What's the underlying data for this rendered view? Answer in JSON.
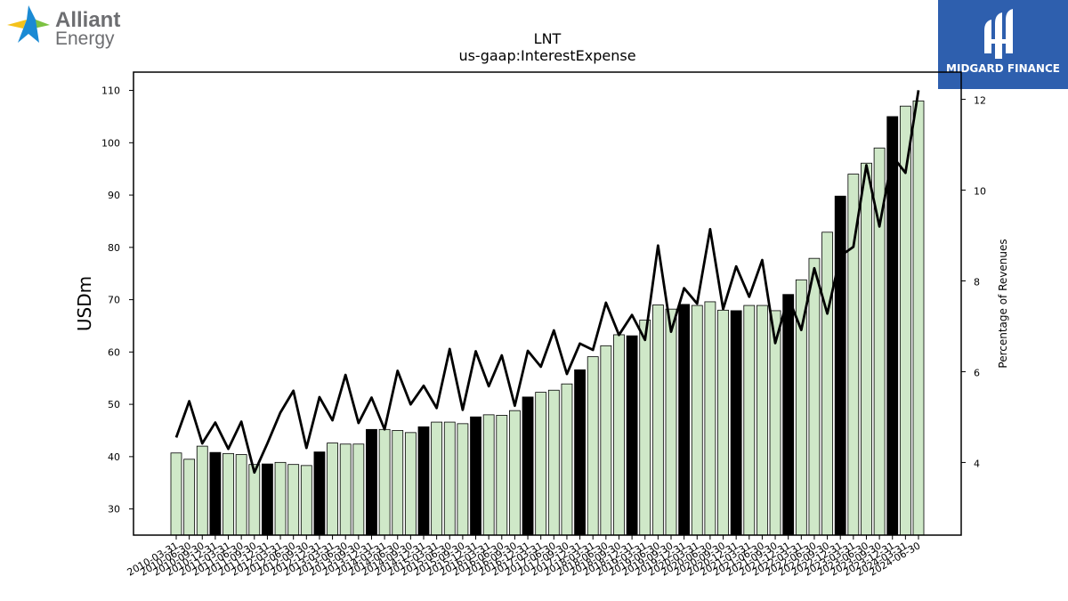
{
  "logos": {
    "left_brand_line1": "Alliant",
    "left_brand_line2": "Energy",
    "right_brand": "MIDGARD FINANCE",
    "colors": {
      "alliant_blue": "#1a8ad4",
      "alliant_yellow": "#f4c21b",
      "alliant_green": "#7cc242",
      "alliant_text": "#6d6e71",
      "midgard_bg": "#2e5fae"
    }
  },
  "chart_data": {
    "type": "bar",
    "title": "LNT",
    "subtitle": "us-gaap:InterestExpense",
    "ylabel": "USDm",
    "y2label": "Percentage of Revenues",
    "ylim": [
      25,
      113.5
    ],
    "y2lim": [
      2.4,
      12.6
    ],
    "yticks": [
      30,
      40,
      50,
      60,
      70,
      80,
      90,
      100,
      110
    ],
    "y2ticks": [
      4,
      6,
      8,
      10,
      12
    ],
    "colors": {
      "bar_default": "#cfe8c8",
      "bar_q4": "#000000",
      "bar_edge": "#000000",
      "line": "#000000"
    },
    "categories": [
      "2010-03-31",
      "2010-06-30",
      "2010-09-30",
      "2010-12-31",
      "2011-03-31",
      "2011-06-30",
      "2011-09-30",
      "2011-12-31",
      "2012-03-31",
      "2012-06-30",
      "2012-09-30",
      "2012-12-31",
      "2013-03-31",
      "2013-06-30",
      "2013-09-30",
      "2013-12-31",
      "2014-03-31",
      "2014-06-30",
      "2014-09-30",
      "2014-12-31",
      "2015-03-31",
      "2015-06-30",
      "2015-09-30",
      "2015-12-31",
      "2016-03-31",
      "2016-06-30",
      "2016-09-30",
      "2016-12-31",
      "2017-03-31",
      "2017-06-30",
      "2017-09-30",
      "2017-12-31",
      "2018-03-31",
      "2018-06-30",
      "2018-09-30",
      "2018-12-31",
      "2019-03-31",
      "2019-06-30",
      "2019-09-30",
      "2019-12-31",
      "2020-03-31",
      "2020-06-30",
      "2020-09-30",
      "2020-12-31",
      "2021-03-31",
      "2021-06-30",
      "2021-09-30",
      "2021-12-31",
      "2022-03-31",
      "2022-06-30",
      "2022-09-30",
      "2022-12-31",
      "2023-03-31",
      "2023-06-30",
      "2023-09-30",
      "2023-12-31",
      "2024-03-31",
      "2024-06-30"
    ],
    "series": [
      {
        "kind": "bar",
        "values": [
          40.7,
          39.5,
          42.0,
          40.8,
          40.6,
          40.4,
          38.5,
          38.6,
          38.9,
          38.5,
          38.3,
          40.9,
          42.6,
          42.4,
          42.4,
          45.2,
          45.2,
          45.0,
          44.6,
          45.7,
          46.6,
          46.6,
          46.3,
          47.6,
          48.0,
          47.9,
          48.8,
          51.4,
          52.3,
          52.7,
          53.9,
          56.6,
          59.1,
          61.2,
          63.3,
          63.1,
          66.1,
          69.0,
          68.2,
          69.1,
          68.9,
          69.6,
          68.0,
          67.9,
          68.9,
          68.9,
          67.9,
          71.0,
          73.8,
          77.9,
          82.9,
          89.8,
          94.0,
          96.1,
          99.0,
          105.0,
          107.0,
          108.0
        ]
      },
      {
        "kind": "line",
        "axis": "right",
        "values": [
          4.55,
          5.35,
          4.42,
          4.88,
          4.3,
          4.9,
          3.78,
          4.42,
          5.1,
          5.58,
          4.32,
          5.44,
          4.93,
          5.93,
          4.87,
          5.43,
          4.73,
          6.02,
          5.28,
          5.69,
          5.2,
          6.5,
          5.16,
          6.45,
          5.68,
          6.36,
          5.25,
          6.46,
          6.11,
          6.91,
          5.95,
          6.62,
          6.48,
          7.52,
          6.81,
          7.25,
          6.7,
          8.78,
          6.88,
          7.84,
          7.5,
          9.14,
          7.38,
          8.32,
          7.65,
          8.46,
          6.63,
          7.64,
          6.92,
          8.28,
          7.28,
          8.55,
          8.75,
          10.55,
          9.2,
          10.75,
          10.38,
          12.2
        ]
      }
    ]
  }
}
